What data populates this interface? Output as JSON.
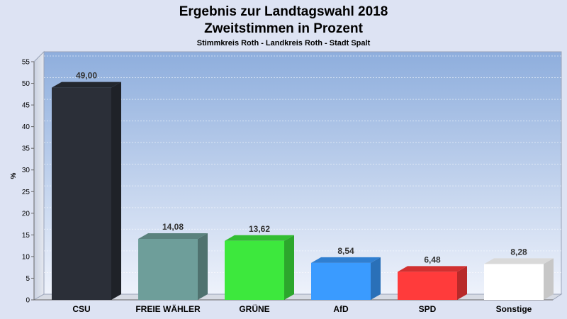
{
  "chart_data": {
    "type": "bar",
    "title": "Ergebnis zur Landtagswahl 2018",
    "title_line2": "Zweitstimmen in Prozent",
    "subtitle": "Stimmkreis Roth - Landkreis Roth - Stadt Spalt",
    "ylabel": "%",
    "xlabel": "",
    "ylim": [
      0,
      55
    ],
    "yticks": [
      0,
      5,
      10,
      15,
      20,
      25,
      30,
      35,
      40,
      45,
      50,
      55
    ],
    "grid": true,
    "legend": "none",
    "categories": [
      "CSU",
      "FREIE WÄHLER",
      "GRÜNE",
      "AfD",
      "SPD",
      "Sonstige"
    ],
    "values": [
      49.0,
      14.08,
      13.62,
      8.54,
      6.48,
      8.28
    ],
    "value_labels": [
      "49,00",
      "14,08",
      "13,62",
      "8,54",
      "6,48",
      "8,28"
    ],
    "colors": [
      "#2b2f38",
      "#6e9e9a",
      "#3de83d",
      "#3a9bff",
      "#ff3b3b",
      "#ffffff"
    ]
  }
}
